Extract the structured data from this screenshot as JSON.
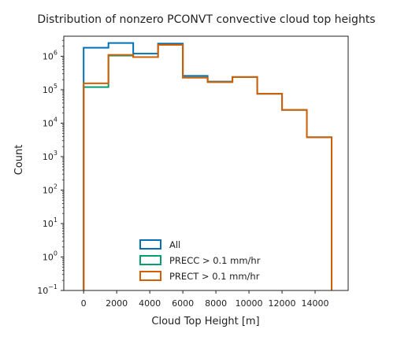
{
  "chart_data": {
    "type": "histogram-step",
    "title": "Distribution of nonzero PCONVT convective cloud top heights",
    "xlabel": "Cloud Top Height [m]",
    "ylabel": "Count",
    "xlim": [
      -1200,
      16000
    ],
    "ylim_log10": [
      -1,
      6.6
    ],
    "yscale": "log",
    "x_ticks": [
      0,
      2000,
      4000,
      6000,
      8000,
      10000,
      12000,
      14000
    ],
    "x_tick_labels": [
      "0",
      "2000",
      "4000",
      "6000",
      "8000",
      "10000",
      "12000",
      "14000"
    ],
    "y_ticks_log10": [
      -1,
      0,
      1,
      2,
      3,
      4,
      5,
      6
    ],
    "y_tick_labels": [
      {
        "base": "10",
        "exp": "−1"
      },
      {
        "base": "10",
        "exp": "0"
      },
      {
        "base": "10",
        "exp": "1"
      },
      {
        "base": "10",
        "exp": "2"
      },
      {
        "base": "10",
        "exp": "3"
      },
      {
        "base": "10",
        "exp": "4"
      },
      {
        "base": "10",
        "exp": "5"
      },
      {
        "base": "10",
        "exp": "6"
      }
    ],
    "bin_edges": [
      0,
      1500,
      3000,
      4500,
      6000,
      7500,
      9000,
      10500,
      12000,
      13500,
      15000
    ],
    "legend_position": "lower center",
    "series": [
      {
        "name": "All",
        "color": "#0072B2",
        "counts": [
          1800000,
          2500000,
          1200000,
          2400000,
          260000,
          175000,
          240000,
          76000,
          25000,
          3800
        ]
      },
      {
        "name": "PRECC > 0.1 mm/hr",
        "color": "#009E73",
        "counts": [
          120000,
          1050000,
          950000,
          2200000,
          230000,
          170000,
          240000,
          76000,
          25000,
          3800
        ]
      },
      {
        "name": "PRECT > 0.1 mm/hr",
        "color": "#D55E00",
        "counts": [
          155000,
          1100000,
          950000,
          2200000,
          230000,
          170000,
          240000,
          76000,
          25000,
          3800
        ]
      }
    ]
  }
}
